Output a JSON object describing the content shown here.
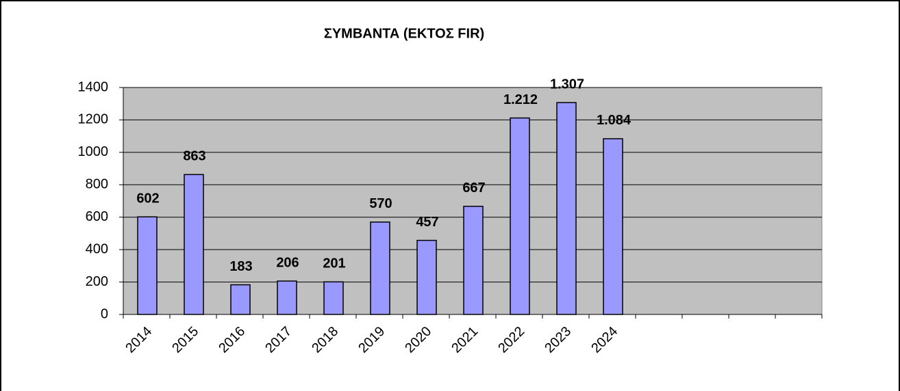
{
  "chart_data": {
    "type": "bar",
    "title": "ΣΥΜΒΑΝΤΑ (ΕΚΤΟΣ FIR)",
    "categories": [
      "2014",
      "2015",
      "2016",
      "2017",
      "2018",
      "2019",
      "2020",
      "2021",
      "2022",
      "2023",
      "2024",
      null,
      null,
      null,
      null
    ],
    "values": [
      602,
      863,
      183,
      206,
      201,
      570,
      457,
      667,
      1212,
      1307,
      1084,
      null,
      null,
      null,
      null
    ],
    "value_labels": [
      "602",
      "863",
      "183",
      "206",
      "201",
      "570",
      "457",
      "667",
      "1.212",
      "1.307",
      "1.084",
      null,
      null,
      null,
      null
    ],
    "color": "#9999ff",
    "ylim": [
      0,
      1400
    ],
    "yticks": [
      0,
      200,
      400,
      600,
      800,
      1000,
      1200,
      1400
    ],
    "grid": true
  }
}
